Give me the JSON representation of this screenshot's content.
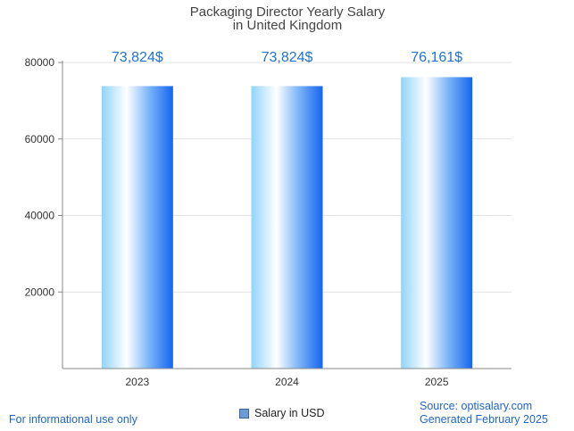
{
  "chart_data": {
    "type": "bar",
    "title_lines": [
      "Packaging Director Yearly Salary",
      "in United Kingdom"
    ],
    "categories": [
      "2023",
      "2024",
      "2025"
    ],
    "series": [
      {
        "name": "Salary in USD",
        "values": [
          73824,
          73824,
          76161
        ]
      }
    ],
    "data_labels": [
      "73,824$",
      "73,824$",
      "76,161$"
    ],
    "y_ticks": [
      20000,
      40000,
      60000,
      80000
    ],
    "ylim": [
      0,
      80000
    ],
    "xlabel": "",
    "ylabel": "",
    "grid": true,
    "legend_position": "bottom-center",
    "colors": {
      "bar_light": "#ffffff",
      "bar_mid": "#8fd4fb",
      "bar_dark": "#1565f0",
      "label": "#1e72d2"
    }
  },
  "footer": {
    "disclaimer": "For informational use only",
    "source": "Source: optisalary.com",
    "generated": "Generated February 2025"
  }
}
